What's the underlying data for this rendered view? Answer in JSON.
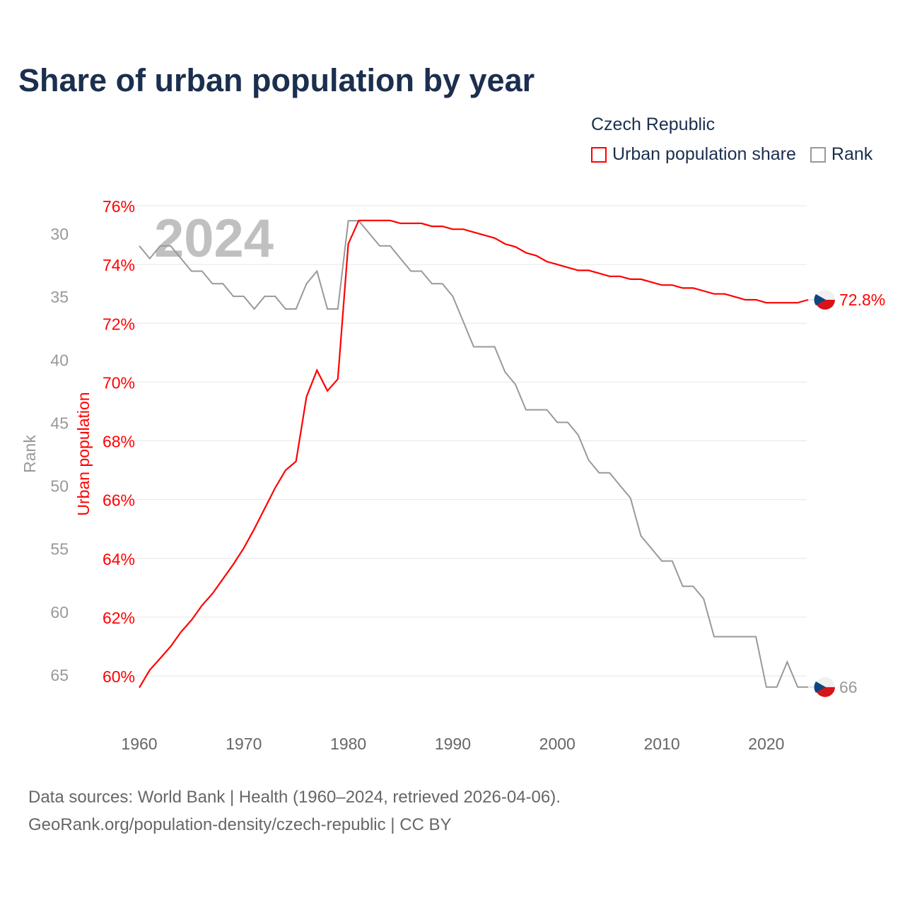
{
  "title": "Share of urban population by year",
  "legend": {
    "title": "Czech Republic",
    "items": [
      {
        "label": "Urban population share",
        "color": "#ff0000"
      },
      {
        "label": "Rank",
        "color": "#999999"
      }
    ]
  },
  "watermark_year": "2024",
  "source": {
    "line1": "Data sources: World Bank | Health (1960–2024, retrieved 2026-04-06).",
    "line2": "GeoRank.org/population-density/czech-republic | CC BY"
  },
  "chart_data": {
    "type": "line",
    "title": "Share of urban population by year",
    "xlabel": "",
    "x_ticks": [
      1960,
      1970,
      1980,
      1990,
      2000,
      2010,
      2020
    ],
    "xlim": [
      1960,
      2024
    ],
    "grid": true,
    "legend_position": "top-right",
    "x": [
      1960,
      1961,
      1962,
      1963,
      1964,
      1965,
      1966,
      1967,
      1968,
      1969,
      1970,
      1971,
      1972,
      1973,
      1974,
      1975,
      1976,
      1977,
      1978,
      1979,
      1980,
      1981,
      1982,
      1983,
      1984,
      1985,
      1986,
      1987,
      1988,
      1989,
      1990,
      1991,
      1992,
      1993,
      1994,
      1995,
      1996,
      1997,
      1998,
      1999,
      2000,
      2001,
      2002,
      2003,
      2004,
      2005,
      2006,
      2007,
      2008,
      2009,
      2010,
      2011,
      2012,
      2013,
      2014,
      2015,
      2016,
      2017,
      2018,
      2019,
      2020,
      2021,
      2022,
      2023,
      2024
    ],
    "series": [
      {
        "name": "Urban population share",
        "axis": "left",
        "ylabel": "Urban population",
        "ylim": [
          60,
          76
        ],
        "y_ticks": [
          60,
          62,
          64,
          66,
          68,
          70,
          72,
          74,
          76
        ],
        "tick_suffix": "%",
        "color": "#ff0000",
        "end_label": "72.8%",
        "values": [
          59.6,
          60.2,
          60.6,
          61.0,
          61.5,
          61.9,
          62.4,
          62.8,
          63.3,
          63.8,
          64.35,
          65.0,
          65.7,
          66.4,
          67.0,
          67.3,
          69.5,
          70.4,
          69.7,
          70.1,
          74.7,
          75.5,
          75.5,
          75.5,
          75.5,
          75.4,
          75.4,
          75.4,
          75.3,
          75.3,
          75.2,
          75.2,
          75.1,
          75.0,
          74.9,
          74.7,
          74.6,
          74.4,
          74.3,
          74.1,
          74.0,
          73.9,
          73.8,
          73.8,
          73.7,
          73.6,
          73.6,
          73.5,
          73.5,
          73.4,
          73.3,
          73.3,
          73.2,
          73.2,
          73.1,
          73.0,
          73.0,
          72.9,
          72.8,
          72.8,
          72.7,
          72.7,
          72.7,
          72.7,
          72.8
        ]
      },
      {
        "name": "Rank",
        "axis": "left-outer",
        "ylabel": "Rank",
        "ylim": [
          30,
          65
        ],
        "y_ticks": [
          30,
          35,
          40,
          45,
          50,
          55,
          60,
          65
        ],
        "inverted": true,
        "color": "#999999",
        "end_label": "66",
        "values": [
          31,
          32,
          31,
          31,
          32,
          33,
          33,
          34,
          34,
          35,
          35,
          36,
          35,
          35,
          36,
          36,
          34,
          33,
          36,
          36,
          29,
          29,
          30,
          31,
          31,
          32,
          33,
          33,
          34,
          34,
          35,
          37,
          39,
          39,
          39,
          41,
          42,
          44,
          44,
          44,
          45,
          45,
          46,
          48,
          49,
          49,
          50,
          51,
          54,
          55,
          56,
          56,
          58,
          58,
          59,
          62,
          62,
          62,
          62,
          62,
          66,
          66,
          64,
          66,
          66
        ]
      }
    ]
  }
}
